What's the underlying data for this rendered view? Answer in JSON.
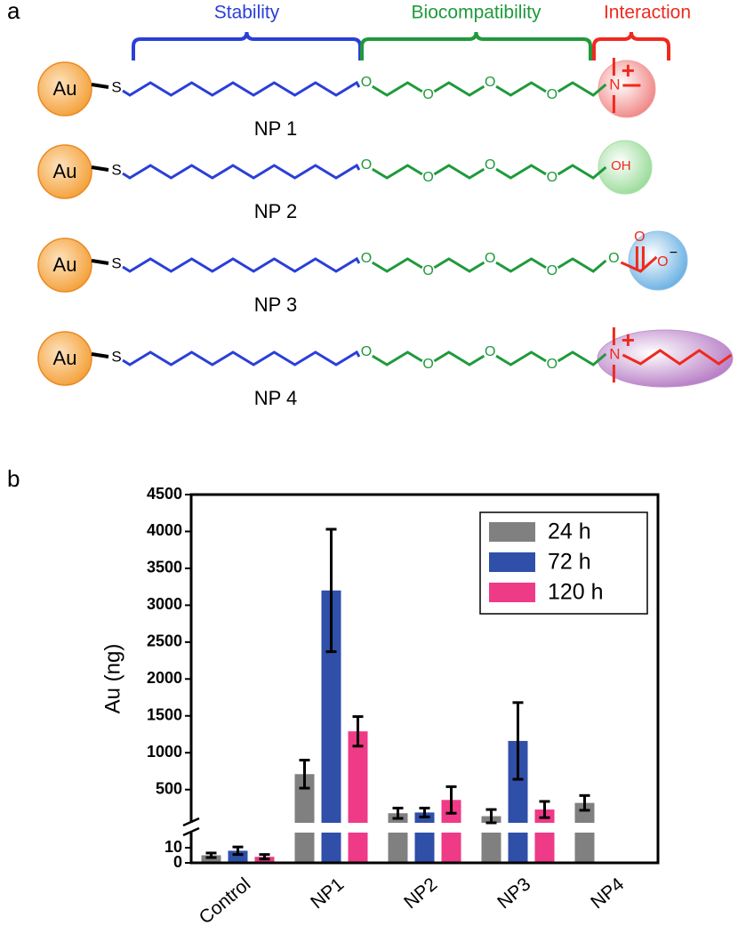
{
  "diagram": {
    "panel_label": "a",
    "segments": [
      {
        "label": "Stability",
        "color": "#2a3fd8"
      },
      {
        "label": "Biocompatibility",
        "color": "#1f9a3c"
      },
      {
        "label": "Interaction",
        "color": "#ee2a1e"
      }
    ],
    "nanoparticles": [
      {
        "core": "Au",
        "linker": "S",
        "ether_oxygens": [
          "O",
          "O",
          "O",
          "O"
        ],
        "end_group": [
          "N",
          "+"
        ],
        "label": "NP 1"
      },
      {
        "core": "Au",
        "linker": "S",
        "ether_oxygens": [
          "O",
          "O",
          "O",
          "O"
        ],
        "end_group": [
          "OH"
        ],
        "label": "NP 2"
      },
      {
        "core": "Au",
        "linker": "S",
        "ether_oxygens": [
          "O",
          "O",
          "O",
          "O",
          "O"
        ],
        "end_group": [
          "O",
          "O",
          "−"
        ],
        "label": "NP 3"
      },
      {
        "core": "Au",
        "linker": "S",
        "ether_oxygens": [
          "O",
          "O",
          "O",
          "O"
        ],
        "end_group": [
          "N",
          "+"
        ],
        "label": "NP 4"
      }
    ]
  },
  "chart_data": {
    "type": "bar",
    "panel_label": "b",
    "y_label": "Au (ng)",
    "categories": [
      "Control",
      "NP1",
      "NP2",
      "NP3",
      "NP4"
    ],
    "series": [
      {
        "name": "24 h",
        "color": "#808080",
        "values": [
          5,
          710,
          180,
          140,
          320
        ],
        "errors": [
          1.5,
          190,
          70,
          90,
          100
        ]
      },
      {
        "name": "72 h",
        "color": "#2f4fa8",
        "values": [
          8,
          3200,
          190,
          1160,
          null
        ],
        "errors": [
          2.5,
          830,
          60,
          520,
          null
        ]
      },
      {
        "name": "120 h",
        "color": "#ee3a87",
        "values": [
          4,
          1290,
          360,
          230,
          null
        ],
        "errors": [
          1.5,
          200,
          180,
          110,
          null
        ]
      }
    ],
    "y_segments": [
      {
        "ylim": [
          0,
          20
        ],
        "yticks": [
          0,
          10
        ]
      },
      {
        "ylim": [
          50,
          4500
        ],
        "yticks": [
          500,
          1000,
          1500,
          2000,
          2500,
          3000,
          3500,
          4000,
          4500
        ]
      }
    ],
    "legend": "upper right"
  }
}
